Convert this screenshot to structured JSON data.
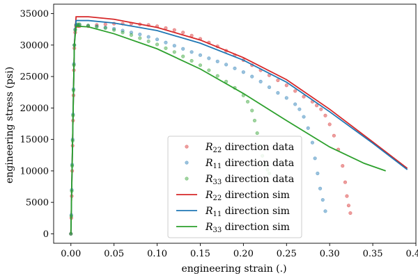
{
  "chart_data": {
    "type": "scatter",
    "xlabel": "engineering strain (.)",
    "ylabel": "engineering stress (psi)",
    "xlim": [
      -0.02,
      0.4
    ],
    "ylim": [
      -1500,
      36500
    ],
    "x_ticks": [
      0.0,
      0.05,
      0.1,
      0.15,
      0.2,
      0.25,
      0.3,
      0.35,
      0.4
    ],
    "x_tick_labels": [
      "0.00",
      "0.05",
      "0.10",
      "0.15",
      "0.20",
      "0.25",
      "0.30",
      "0.35",
      "0.40"
    ],
    "y_ticks": [
      0,
      5000,
      10000,
      15000,
      20000,
      25000,
      30000,
      35000
    ],
    "y_tick_labels": [
      "0",
      "5000",
      "10000",
      "15000",
      "20000",
      "25000",
      "30000",
      "35000"
    ],
    "grid": false,
    "legend_position": "lower-center",
    "series": [
      {
        "name": "R22 direction data",
        "legend_main": "R",
        "legend_sub": "22",
        "legend_rest": " direction data",
        "kind": "scatter",
        "color": "#d62728",
        "points": [
          [
            0.0,
            0
          ],
          [
            0.0005,
            2500
          ],
          [
            0.001,
            6000
          ],
          [
            0.0015,
            10000
          ],
          [
            0.002,
            14000
          ],
          [
            0.0025,
            18000
          ],
          [
            0.003,
            22000
          ],
          [
            0.0035,
            26000
          ],
          [
            0.004,
            29500
          ],
          [
            0.005,
            32000
          ],
          [
            0.006,
            33000
          ],
          [
            0.008,
            33000
          ],
          [
            0.01,
            33000
          ],
          [
            0.02,
            33000
          ],
          [
            0.03,
            33200
          ],
          [
            0.04,
            33300
          ],
          [
            0.05,
            33400
          ],
          [
            0.06,
            33400
          ],
          [
            0.07,
            33400
          ],
          [
            0.08,
            33300
          ],
          [
            0.09,
            33200
          ],
          [
            0.1,
            33000
          ],
          [
            0.11,
            32700
          ],
          [
            0.12,
            32400
          ],
          [
            0.13,
            32000
          ],
          [
            0.14,
            31500
          ],
          [
            0.15,
            31000
          ],
          [
            0.16,
            30400
          ],
          [
            0.17,
            29800
          ],
          [
            0.18,
            29100
          ],
          [
            0.19,
            28400
          ],
          [
            0.2,
            27600
          ],
          [
            0.21,
            26800
          ],
          [
            0.22,
            26000
          ],
          [
            0.23,
            25200
          ],
          [
            0.24,
            24400
          ],
          [
            0.25,
            23600
          ],
          [
            0.26,
            22700
          ],
          [
            0.27,
            21800
          ],
          [
            0.28,
            21000
          ],
          [
            0.285,
            20400
          ],
          [
            0.29,
            19800
          ],
          [
            0.295,
            18800
          ],
          [
            0.3,
            17400
          ],
          [
            0.305,
            15600
          ],
          [
            0.31,
            13400
          ],
          [
            0.315,
            10800
          ],
          [
            0.318,
            8200
          ],
          [
            0.32,
            6000
          ],
          [
            0.322,
            4500
          ],
          [
            0.324,
            3300
          ]
        ]
      },
      {
        "name": "R11 direction data",
        "legend_main": "R",
        "legend_sub": "11",
        "legend_rest": " direction data",
        "kind": "scatter",
        "color": "#1f77b4",
        "points": [
          [
            0.0,
            0
          ],
          [
            0.0005,
            3000
          ],
          [
            0.001,
            7000
          ],
          [
            0.0015,
            11000
          ],
          [
            0.002,
            15000
          ],
          [
            0.0025,
            19000
          ],
          [
            0.003,
            23000
          ],
          [
            0.0035,
            27000
          ],
          [
            0.004,
            30000
          ],
          [
            0.005,
            32500
          ],
          [
            0.006,
            33200
          ],
          [
            0.008,
            33200
          ],
          [
            0.01,
            33200
          ],
          [
            0.02,
            33100
          ],
          [
            0.03,
            33000
          ],
          [
            0.04,
            32800
          ],
          [
            0.05,
            32600
          ],
          [
            0.06,
            32300
          ],
          [
            0.07,
            32000
          ],
          [
            0.08,
            31700
          ],
          [
            0.09,
            31300
          ],
          [
            0.1,
            30900
          ],
          [
            0.11,
            30400
          ],
          [
            0.12,
            29900
          ],
          [
            0.13,
            29400
          ],
          [
            0.14,
            28900
          ],
          [
            0.15,
            28400
          ],
          [
            0.16,
            27900
          ],
          [
            0.17,
            27400
          ],
          [
            0.18,
            26900
          ],
          [
            0.19,
            26300
          ],
          [
            0.2,
            25700
          ],
          [
            0.21,
            25000
          ],
          [
            0.22,
            24200
          ],
          [
            0.23,
            23300
          ],
          [
            0.24,
            22400
          ],
          [
            0.25,
            21600
          ],
          [
            0.26,
            20600
          ],
          [
            0.265,
            19800
          ],
          [
            0.27,
            18600
          ],
          [
            0.275,
            16800
          ],
          [
            0.28,
            14500
          ],
          [
            0.283,
            12000
          ],
          [
            0.286,
            9600
          ],
          [
            0.289,
            7200
          ],
          [
            0.292,
            5400
          ],
          [
            0.295,
            3600
          ]
        ]
      },
      {
        "name": "R33 direction data",
        "legend_main": "R",
        "legend_sub": "33",
        "legend_rest": " direction data",
        "kind": "scatter",
        "color": "#2ca02c",
        "points": [
          [
            0.0,
            0
          ],
          [
            0.0005,
            2800
          ],
          [
            0.001,
            6800
          ],
          [
            0.0015,
            10800
          ],
          [
            0.002,
            14800
          ],
          [
            0.0025,
            18800
          ],
          [
            0.003,
            22800
          ],
          [
            0.0035,
            26800
          ],
          [
            0.004,
            30000
          ],
          [
            0.005,
            32400
          ],
          [
            0.006,
            33200
          ],
          [
            0.008,
            33300
          ],
          [
            0.01,
            33300
          ],
          [
            0.02,
            33100
          ],
          [
            0.03,
            32900
          ],
          [
            0.04,
            32700
          ],
          [
            0.05,
            32400
          ],
          [
            0.06,
            32000
          ],
          [
            0.07,
            31600
          ],
          [
            0.08,
            31100
          ],
          [
            0.09,
            30600
          ],
          [
            0.1,
            30100
          ],
          [
            0.11,
            29500
          ],
          [
            0.12,
            28900
          ],
          [
            0.13,
            28200
          ],
          [
            0.14,
            27500
          ],
          [
            0.15,
            26800
          ],
          [
            0.16,
            26000
          ],
          [
            0.17,
            25100
          ],
          [
            0.18,
            24200
          ],
          [
            0.19,
            23200
          ],
          [
            0.2,
            22000
          ],
          [
            0.205,
            21000
          ],
          [
            0.21,
            19600
          ],
          [
            0.213,
            18000
          ],
          [
            0.216,
            16000
          ],
          [
            0.219,
            14000
          ],
          [
            0.222,
            12400
          ],
          [
            0.225,
            11000
          ],
          [
            0.228,
            10200
          ],
          [
            0.23,
            9600
          ]
        ]
      },
      {
        "name": "R22 direction sim",
        "legend_main": "R",
        "legend_sub": "22",
        "legend_rest": " direction sim",
        "kind": "line",
        "color": "#d62728",
        "points": [
          [
            0.0,
            0
          ],
          [
            0.004,
            30000
          ],
          [
            0.006,
            34500
          ],
          [
            0.02,
            34500
          ],
          [
            0.05,
            34100
          ],
          [
            0.1,
            32800
          ],
          [
            0.15,
            30800
          ],
          [
            0.2,
            28000
          ],
          [
            0.25,
            24500
          ],
          [
            0.3,
            19800
          ],
          [
            0.35,
            14600
          ],
          [
            0.39,
            10400
          ]
        ]
      },
      {
        "name": "R11 direction sim",
        "legend_main": "R",
        "legend_sub": "11",
        "legend_rest": " direction sim",
        "kind": "line",
        "color": "#1f77b4",
        "points": [
          [
            0.0,
            0
          ],
          [
            0.004,
            30000
          ],
          [
            0.006,
            33900
          ],
          [
            0.02,
            33900
          ],
          [
            0.05,
            33500
          ],
          [
            0.1,
            32300
          ],
          [
            0.15,
            30300
          ],
          [
            0.2,
            27600
          ],
          [
            0.25,
            24100
          ],
          [
            0.3,
            19400
          ],
          [
            0.35,
            14400
          ],
          [
            0.39,
            10200
          ]
        ]
      },
      {
        "name": "R33 direction sim",
        "legend_main": "R",
        "legend_sub": "33",
        "legend_rest": " direction sim",
        "kind": "line",
        "color": "#2ca02c",
        "points": [
          [
            0.0,
            0
          ],
          [
            0.004,
            30000
          ],
          [
            0.006,
            33000
          ],
          [
            0.02,
            32900
          ],
          [
            0.05,
            31800
          ],
          [
            0.1,
            29400
          ],
          [
            0.15,
            26200
          ],
          [
            0.2,
            22300
          ],
          [
            0.25,
            18000
          ],
          [
            0.3,
            13800
          ],
          [
            0.34,
            11200
          ],
          [
            0.365,
            10000
          ]
        ]
      }
    ]
  }
}
